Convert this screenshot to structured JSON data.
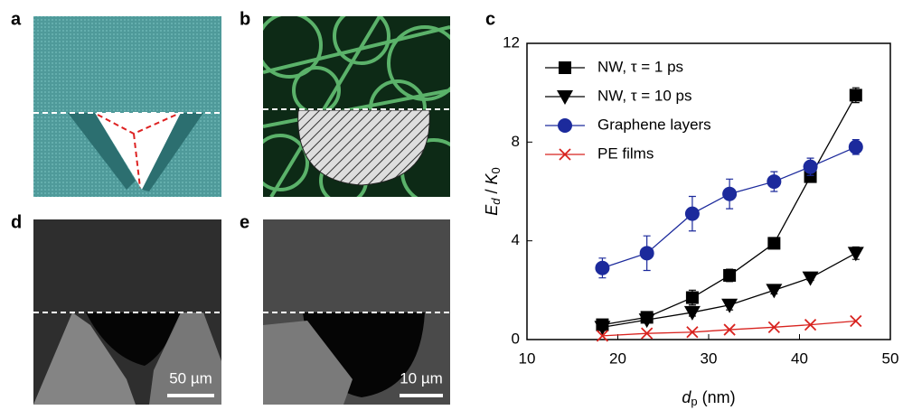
{
  "panels": [
    {
      "label": "a"
    },
    {
      "label": "b"
    },
    {
      "label": "d",
      "scale_bar": "50 µm"
    },
    {
      "label": "e",
      "scale_bar": "10 µm"
    }
  ],
  "chart_data": {
    "type": "line",
    "panel_label": "c",
    "xlabel": [
      "d",
      "p",
      " (nm)"
    ],
    "ylabel": [
      "E",
      "d",
      " / ",
      "K",
      "0"
    ],
    "x": [
      18.3,
      23.2,
      28.2,
      32.3,
      37.2,
      41.2,
      46.2
    ],
    "xlim": [
      10,
      50
    ],
    "xticks": [
      10,
      20,
      30,
      40,
      50
    ],
    "ylim": [
      0,
      12
    ],
    "yticks": [
      0,
      4,
      8,
      12
    ],
    "legend": "upper left",
    "series": [
      {
        "name": "NW, τ = 1 ps",
        "color": "#000000",
        "marker": "square",
        "values": [
          0.6,
          0.9,
          1.7,
          2.6,
          3.9,
          6.6,
          9.9
        ],
        "errors": [
          0.1,
          0.15,
          0.3,
          0.25,
          0.15,
          0.15,
          0.3
        ]
      },
      {
        "name": "NW, τ = 10 ps",
        "color": "#000000",
        "marker": "triangle-down",
        "values": [
          0.5,
          0.8,
          1.1,
          1.4,
          2.0,
          2.5,
          3.5
        ],
        "errors": [
          0.1,
          0.1,
          0.15,
          0.2,
          0.15,
          0.1,
          0.25
        ]
      },
      {
        "name": "Graphene layers",
        "color": "#1c2a9c",
        "marker": "circle",
        "values": [
          2.9,
          3.5,
          5.1,
          5.9,
          6.4,
          7.0,
          7.8
        ],
        "errors": [
          0.4,
          0.7,
          0.7,
          0.6,
          0.4,
          0.35,
          0.3
        ]
      },
      {
        "name": "PE films",
        "color": "#d8231f",
        "marker": "x",
        "values": [
          0.15,
          0.25,
          0.3,
          0.4,
          0.5,
          0.6,
          0.75
        ]
      }
    ]
  }
}
